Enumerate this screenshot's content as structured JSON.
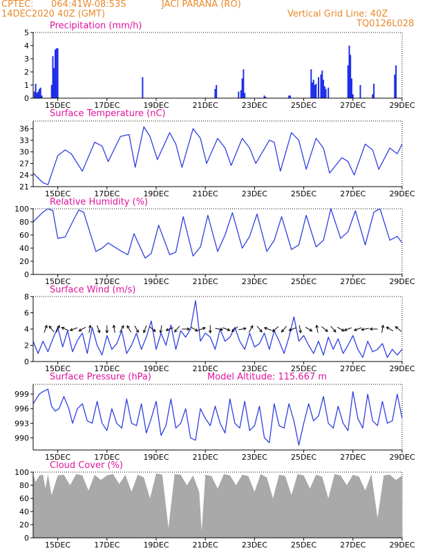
{
  "header": {
    "source": "CPTEC:",
    "coords": "064:41W-08:53S",
    "location": "JACI PARANA (RO)",
    "date": "14DEC2020 40Z (GMT)",
    "grid_note": "Vertical Grid Line: 40Z",
    "code": "TQ0126L028"
  },
  "colors": {
    "header": "#e8892c",
    "title": "#e0139c",
    "line": "#2d3fe0",
    "bar": "#1e2ee8",
    "cloud": "#a9a9a9",
    "arrow": "#000000"
  },
  "chart_data": [
    {
      "type": "bar",
      "title": "Precipitation (mm/h)",
      "ylim": [
        0,
        5
      ],
      "yticks": [
        0,
        1,
        2,
        3,
        4,
        5
      ],
      "xlim": [
        14,
        29
      ],
      "xticks": [
        15,
        17,
        19,
        21,
        23,
        25,
        27,
        29
      ],
      "xticklabels": [
        "15DEC",
        "17DEC",
        "19DEC",
        "21DEC",
        "23DEC",
        "25DEC",
        "27DEC",
        "29DEC"
      ],
      "x": [
        14.05,
        14.1,
        14.15,
        14.2,
        14.25,
        14.3,
        14.35,
        14.75,
        14.8,
        14.85,
        14.9,
        14.95,
        15.0,
        18.45,
        21.4,
        21.45,
        22.35,
        22.45,
        22.5,
        22.55,
        22.6,
        23.4,
        23.45,
        24.4,
        24.45,
        25.3,
        25.35,
        25.4,
        25.45,
        25.5,
        25.6,
        25.7,
        25.75,
        25.8,
        25.85,
        25.9,
        26.0,
        26.8,
        26.85,
        26.9,
        26.95,
        27.0,
        27.3,
        27.8,
        27.85,
        28.7,
        28.75
      ],
      "values": [
        0.5,
        1.1,
        0.4,
        0.5,
        0.7,
        0.8,
        0.2,
        1.0,
        3.2,
        2.3,
        3.7,
        3.8,
        3.8,
        1.6,
        0.7,
        1.0,
        0.5,
        0.6,
        1.5,
        2.2,
        0.4,
        0.2,
        0.1,
        0.2,
        0.2,
        2.2,
        1.2,
        1.4,
        1.0,
        1.1,
        1.6,
        1.8,
        2.1,
        1.4,
        0.9,
        0.7,
        0.8,
        2.5,
        4.0,
        3.3,
        1.5,
        0.3,
        1.0,
        0.3,
        1.1,
        1.8,
        2.5
      ]
    },
    {
      "type": "line",
      "title": "Surface Temperature (nC)",
      "ylim": [
        21,
        38
      ],
      "yticks": [
        21,
        24,
        27,
        30,
        33,
        36
      ],
      "xlim": [
        14,
        29
      ],
      "xticks": [
        15,
        17,
        19,
        21,
        23,
        25,
        27,
        29
      ],
      "xticklabels": [
        "15DEC",
        "17DEC",
        "19DEC",
        "21DEC",
        "23DEC",
        "25DEC",
        "27DEC",
        "29DEC"
      ],
      "x": [
        14.0,
        14.4,
        14.6,
        15.0,
        15.3,
        15.55,
        16.0,
        16.5,
        16.8,
        17.05,
        17.55,
        17.9,
        18.15,
        18.5,
        18.75,
        19.05,
        19.55,
        19.8,
        20.05,
        20.5,
        20.8,
        21.05,
        21.5,
        21.8,
        22.05,
        22.5,
        22.8,
        23.05,
        23.6,
        23.8,
        24.05,
        24.5,
        24.8,
        25.1,
        25.5,
        25.8,
        26.05,
        26.55,
        26.8,
        27.05,
        27.5,
        27.8,
        28.05,
        28.5,
        28.8,
        29.0
      ],
      "values": [
        24.5,
        22.0,
        21.5,
        29.0,
        30.5,
        29.5,
        25.0,
        32.5,
        31.5,
        27.5,
        34.0,
        34.5,
        26.0,
        36.5,
        34.0,
        28.0,
        35.0,
        32.0,
        26.0,
        36.0,
        33.5,
        27.0,
        33.5,
        31.0,
        26.5,
        33.5,
        31.0,
        27.0,
        33.0,
        32.5,
        25.0,
        35.0,
        33.0,
        25.5,
        33.5,
        31.0,
        24.5,
        28.5,
        27.5,
        24.0,
        32.0,
        30.5,
        25.5,
        31.0,
        29.5,
        32.0
      ]
    },
    {
      "type": "line",
      "title": "Relative Humidity (%)",
      "ylim": [
        0,
        100
      ],
      "yticks": [
        0,
        20,
        40,
        60,
        80,
        100
      ],
      "xlim": [
        14,
        29
      ],
      "xticks": [
        15,
        17,
        19,
        21,
        23,
        25,
        27,
        29
      ],
      "xticklabels": [
        "15DEC",
        "17DEC",
        "19DEC",
        "21DEC",
        "23DEC",
        "25DEC",
        "27DEC",
        "29DEC"
      ],
      "x": [
        14.0,
        14.4,
        14.6,
        14.8,
        15.0,
        15.3,
        15.6,
        15.85,
        16.05,
        16.55,
        16.8,
        17.05,
        17.6,
        17.85,
        18.1,
        18.55,
        18.8,
        19.1,
        19.55,
        19.8,
        20.1,
        20.5,
        20.8,
        21.1,
        21.5,
        21.8,
        22.1,
        22.5,
        22.8,
        23.1,
        23.5,
        23.8,
        24.1,
        24.5,
        24.8,
        25.1,
        25.5,
        25.8,
        26.1,
        26.5,
        26.8,
        27.1,
        27.5,
        27.85,
        28.1,
        28.5,
        28.8,
        29.0
      ],
      "values": [
        80,
        95,
        100,
        97,
        55,
        57,
        80,
        98,
        95,
        35,
        40,
        48,
        35,
        30,
        62,
        25,
        32,
        75,
        30,
        34,
        88,
        28,
        42,
        90,
        35,
        60,
        94,
        40,
        58,
        92,
        35,
        52,
        88,
        38,
        45,
        90,
        42,
        52,
        100,
        55,
        65,
        97,
        45,
        95,
        100,
        52,
        58,
        48
      ]
    },
    {
      "type": "line",
      "title": "Surface Wind (m/s)",
      "ylim": [
        0,
        8
      ],
      "yticks": [
        0,
        2,
        4,
        6,
        8
      ],
      "xlim": [
        14,
        29
      ],
      "xticks": [
        15,
        17,
        19,
        21,
        23,
        25,
        27,
        29
      ],
      "xticklabels": [
        "15DEC",
        "17DEC",
        "19DEC",
        "21DEC",
        "23DEC",
        "25DEC",
        "27DEC",
        "29DEC"
      ],
      "x": [
        14.0,
        14.2,
        14.4,
        14.6,
        14.8,
        15.0,
        15.2,
        15.4,
        15.6,
        15.8,
        16.0,
        16.2,
        16.4,
        16.6,
        16.8,
        17.0,
        17.2,
        17.4,
        17.6,
        17.8,
        18.0,
        18.2,
        18.4,
        18.6,
        18.8,
        19.0,
        19.2,
        19.4,
        19.6,
        19.8,
        20.0,
        20.2,
        20.4,
        20.6,
        20.8,
        21.0,
        21.2,
        21.4,
        21.6,
        21.8,
        22.0,
        22.2,
        22.4,
        22.6,
        22.8,
        23.0,
        23.2,
        23.4,
        23.6,
        23.8,
        24.0,
        24.2,
        24.4,
        24.6,
        24.8,
        25.0,
        25.2,
        25.4,
        25.6,
        25.8,
        26.0,
        26.2,
        26.4,
        26.6,
        26.8,
        27.0,
        27.2,
        27.4,
        27.6,
        27.8,
        28.0,
        28.2,
        28.4,
        28.6,
        28.8,
        29.0
      ],
      "values": [
        2.5,
        1.0,
        2.5,
        1.2,
        2.8,
        4.2,
        1.8,
        3.8,
        1.2,
        2.6,
        3.5,
        1.0,
        4.2,
        2.0,
        0.8,
        3.2,
        1.5,
        2.2,
        3.8,
        1.0,
        2.0,
        3.5,
        1.5,
        3.0,
        5.0,
        1.5,
        3.5,
        2.0,
        4.5,
        1.5,
        3.8,
        3.0,
        4.0,
        7.5,
        2.5,
        3.5,
        3.0,
        1.5,
        4.0,
        2.5,
        3.0,
        4.2,
        2.5,
        1.5,
        3.5,
        1.8,
        2.2,
        3.5,
        1.5,
        3.8,
        2.5,
        1.0,
        3.0,
        5.5,
        2.5,
        3.2,
        2.0,
        1.0,
        2.5,
        0.8,
        3.0,
        1.5,
        2.8,
        1.0,
        2.0,
        3.2,
        1.5,
        0.5,
        2.5,
        1.2,
        1.5,
        2.2,
        0.5,
        1.5,
        0.8,
        1.5
      ],
      "arrows": {
        "x": [
          14.5,
          14.75,
          15.0,
          15.3,
          15.65,
          16.0,
          16.3,
          16.65,
          17.0,
          17.3,
          17.6,
          17.9,
          18.2,
          18.55,
          18.85,
          19.2,
          19.55,
          19.85,
          20.2,
          20.55,
          20.85,
          21.2,
          21.55,
          21.85,
          22.2,
          22.5,
          22.85,
          23.2,
          23.55,
          23.85,
          24.2,
          24.55,
          24.85,
          25.2,
          25.55,
          25.85,
          26.2,
          26.5,
          26.8,
          27.2,
          27.5,
          27.85,
          28.2,
          28.5,
          28.85
        ],
        "angle_deg": [
          70,
          130,
          65,
          155,
          200,
          210,
          80,
          290,
          270,
          100,
          60,
          120,
          300,
          250,
          320,
          260,
          200,
          230,
          0,
          330,
          20,
          270,
          350,
          340,
          220,
          10,
          60,
          310,
          160,
          220,
          230,
          200,
          280,
          330,
          100,
          320,
          310,
          330,
          200,
          200,
          190,
          180,
          80,
          150,
          140
        ]
      }
    },
    {
      "type": "line",
      "title": "Surface Pressure (hPa)",
      "annotation": "Model Altitude: 115.667 m",
      "ylim": [
        987.5,
        1001
      ],
      "yticks": [
        990,
        993,
        996,
        999
      ],
      "xlim": [
        14,
        29
      ],
      "xticks": [
        15,
        17,
        19,
        21,
        23,
        25,
        27,
        29
      ],
      "xticklabels": [
        "15DEC",
        "17DEC",
        "19DEC",
        "21DEC",
        "23DEC",
        "25DEC",
        "27DEC",
        "29DEC"
      ],
      "x": [
        14.0,
        14.25,
        14.4,
        14.6,
        14.75,
        14.9,
        15.05,
        15.25,
        15.45,
        15.6,
        15.8,
        16.0,
        16.2,
        16.4,
        16.6,
        16.8,
        17.0,
        17.2,
        17.4,
        17.6,
        17.8,
        18.0,
        18.2,
        18.4,
        18.6,
        18.8,
        19.0,
        19.2,
        19.4,
        19.6,
        19.8,
        20.0,
        20.2,
        20.4,
        20.6,
        20.8,
        21.0,
        21.2,
        21.4,
        21.6,
        21.8,
        22.0,
        22.2,
        22.4,
        22.6,
        22.8,
        23.0,
        23.2,
        23.4,
        23.6,
        23.8,
        24.0,
        24.2,
        24.4,
        24.6,
        24.8,
        25.0,
        25.2,
        25.4,
        25.6,
        25.8,
        26.0,
        26.2,
        26.4,
        26.6,
        26.8,
        27.0,
        27.2,
        27.4,
        27.6,
        27.8,
        28.0,
        28.2,
        28.4,
        28.6,
        28.8,
        29.0
      ],
      "values": [
        997.0,
        999.0,
        999.5,
        1000.0,
        996.5,
        995.5,
        996.0,
        998.5,
        996.0,
        993.0,
        996.0,
        997.0,
        993.5,
        993.0,
        997.5,
        993.0,
        991.5,
        996.0,
        993.0,
        992.0,
        998.0,
        993.0,
        992.5,
        997.0,
        991.0,
        994.0,
        997.5,
        990.5,
        992.5,
        998.0,
        992.0,
        993.0,
        996.0,
        990.0,
        989.5,
        996.0,
        994.0,
        992.5,
        996.5,
        993.0,
        991.0,
        998.0,
        993.0,
        992.0,
        997.5,
        991.5,
        992.5,
        996.5,
        990.0,
        989.0,
        997.0,
        992.5,
        992.0,
        997.0,
        993.5,
        988.5,
        993.0,
        997.0,
        993.5,
        994.5,
        998.5,
        993.0,
        992.0,
        996.5,
        993.0,
        991.5,
        999.5,
        994.0,
        992.0,
        999.0,
        993.5,
        992.5,
        997.5,
        993.0,
        993.5,
        999.0,
        994.0
      ]
    },
    {
      "type": "area",
      "title": "Cloud Cover (%)",
      "ylim": [
        0,
        100
      ],
      "yticks": [
        0,
        20,
        40,
        60,
        80,
        100
      ],
      "xlim": [
        14,
        29
      ],
      "xticks": [
        15,
        17,
        19,
        21,
        23,
        25,
        27,
        29
      ],
      "xticklabels": [
        "15DEC",
        "17DEC",
        "19DEC",
        "21DEC",
        "23DEC",
        "25DEC",
        "27DEC",
        "29DEC"
      ],
      "x": [
        14.0,
        14.1,
        14.25,
        14.4,
        14.5,
        14.6,
        14.75,
        15.0,
        15.25,
        15.5,
        15.75,
        16.0,
        16.25,
        16.5,
        16.75,
        17.0,
        17.25,
        17.5,
        17.75,
        18.0,
        18.25,
        18.5,
        18.75,
        19.0,
        19.25,
        19.5,
        19.75,
        20.0,
        20.25,
        20.5,
        20.75,
        20.85,
        21.0,
        21.25,
        21.5,
        21.75,
        22.0,
        22.25,
        22.5,
        22.75,
        23.0,
        23.25,
        23.5,
        23.75,
        24.0,
        24.25,
        24.5,
        24.75,
        25.0,
        25.25,
        25.5,
        25.75,
        26.0,
        26.25,
        26.5,
        26.75,
        27.0,
        27.25,
        27.5,
        27.75,
        28.0,
        28.25,
        28.5,
        28.75,
        29.0
      ],
      "values": [
        97,
        85,
        95,
        96,
        75,
        97,
        65,
        95,
        96,
        80,
        97,
        95,
        72,
        96,
        88,
        95,
        97,
        82,
        96,
        70,
        96,
        92,
        60,
        98,
        96,
        15,
        97,
        96,
        80,
        95,
        70,
        10,
        96,
        94,
        75,
        97,
        95,
        80,
        96,
        94,
        70,
        97,
        92,
        60,
        96,
        94,
        65,
        97,
        95,
        75,
        96,
        93,
        60,
        97,
        95,
        80,
        96,
        93,
        72,
        97,
        30,
        95,
        96,
        88,
        95
      ]
    }
  ]
}
